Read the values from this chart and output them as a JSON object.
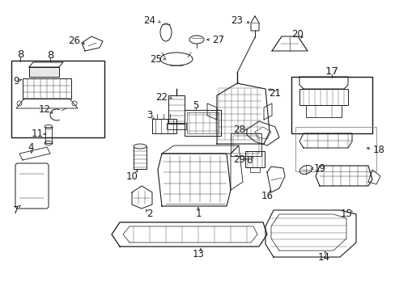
{
  "bg_color": "#ffffff",
  "line_color": "#1a1a1a",
  "fig_width": 4.89,
  "fig_height": 3.6,
  "dpi": 100,
  "label_fontsize": 8.5,
  "small_fontsize": 7.0
}
